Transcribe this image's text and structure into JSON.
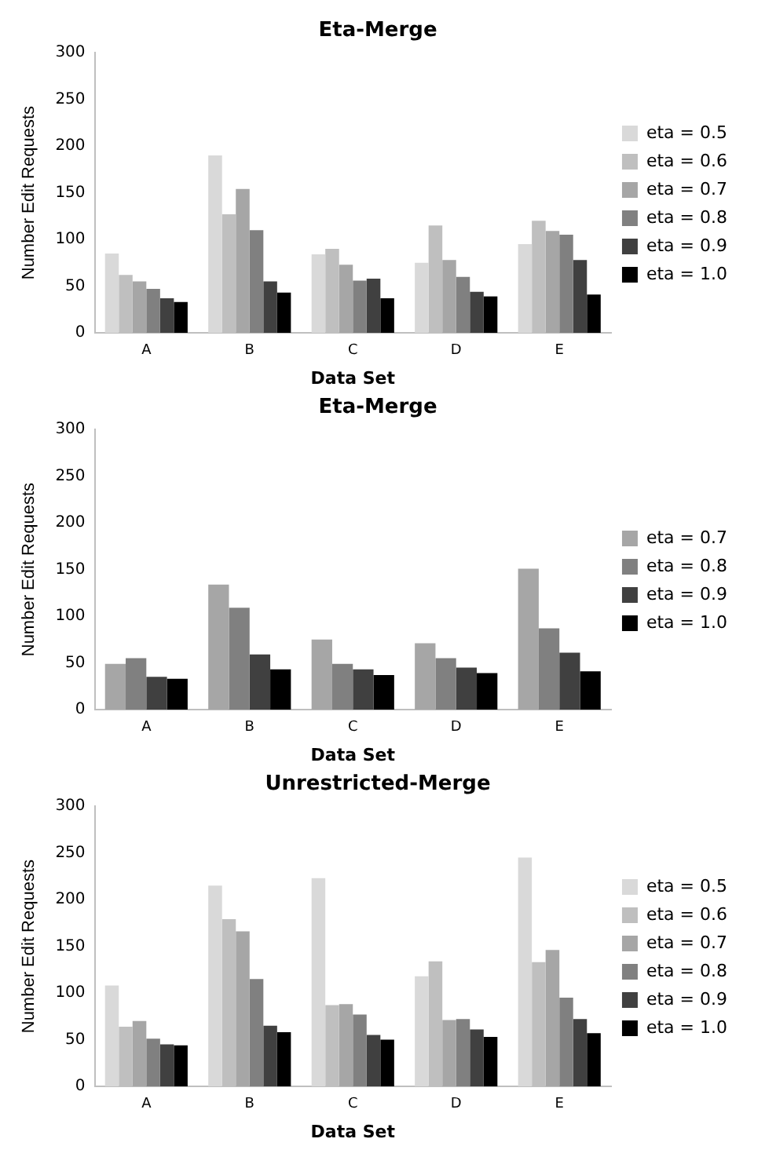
{
  "chart_data": [
    {
      "type": "bar",
      "title": "Eta-Merge",
      "xlabel": "Data Set",
      "ylabel": "Number Edit Requests",
      "categories": [
        "A",
        "B",
        "C",
        "D",
        "E"
      ],
      "ylim": [
        0,
        300
      ],
      "yticks": [
        0,
        50,
        100,
        150,
        200,
        250,
        300
      ],
      "grid": false,
      "legend": "right",
      "series": [
        {
          "name": "eta = 0.5",
          "color": "#d9d9d9",
          "values": [
            85,
            190,
            84,
            75,
            95
          ]
        },
        {
          "name": "eta = 0.6",
          "color": "#bfbfbf",
          "values": [
            62,
            127,
            90,
            115,
            120
          ]
        },
        {
          "name": "eta = 0.7",
          "color": "#a6a6a6",
          "values": [
            55,
            154,
            73,
            78,
            109
          ]
        },
        {
          "name": "eta = 0.8",
          "color": "#808080",
          "values": [
            47,
            110,
            56,
            60,
            105
          ]
        },
        {
          "name": "eta = 0.9",
          "color": "#404040",
          "values": [
            37,
            55,
            58,
            44,
            78
          ]
        },
        {
          "name": "eta = 1.0",
          "color": "#000000",
          "values": [
            33,
            43,
            37,
            39,
            41
          ]
        }
      ]
    },
    {
      "type": "bar",
      "title": "Eta-Merge",
      "xlabel": "Data Set",
      "ylabel": "Number Edit Requests",
      "categories": [
        "A",
        "B",
        "C",
        "D",
        "E"
      ],
      "ylim": [
        0,
        300
      ],
      "yticks": [
        0,
        50,
        100,
        150,
        200,
        250,
        300
      ],
      "grid": false,
      "legend": "right",
      "series": [
        {
          "name": "eta = 0.7",
          "color": "#a6a6a6",
          "values": [
            49,
            134,
            75,
            71,
            151
          ]
        },
        {
          "name": "eta = 0.8",
          "color": "#808080",
          "values": [
            55,
            109,
            49,
            55,
            87
          ]
        },
        {
          "name": "eta = 0.9",
          "color": "#404040",
          "values": [
            35,
            59,
            43,
            45,
            61
          ]
        },
        {
          "name": "eta = 1.0",
          "color": "#000000",
          "values": [
            33,
            43,
            37,
            39,
            41
          ]
        }
      ]
    },
    {
      "type": "bar",
      "title": "Unrestricted-Merge",
      "xlabel": "Data Set",
      "ylabel": "Number Edit Requests",
      "categories": [
        "A",
        "B",
        "C",
        "D",
        "E"
      ],
      "ylim": [
        0,
        300
      ],
      "yticks": [
        0,
        50,
        100,
        150,
        200,
        250,
        300
      ],
      "grid": false,
      "legend": "right",
      "series": [
        {
          "name": "eta = 0.5",
          "color": "#d9d9d9",
          "values": [
            108,
            215,
            223,
            118,
            245
          ]
        },
        {
          "name": "eta = 0.6",
          "color": "#bfbfbf",
          "values": [
            64,
            179,
            87,
            134,
            133
          ]
        },
        {
          "name": "eta = 0.7",
          "color": "#a6a6a6",
          "values": [
            70,
            166,
            88,
            71,
            146
          ]
        },
        {
          "name": "eta = 0.8",
          "color": "#808080",
          "values": [
            51,
            115,
            77,
            72,
            95
          ]
        },
        {
          "name": "eta = 0.9",
          "color": "#404040",
          "values": [
            45,
            65,
            55,
            61,
            72
          ]
        },
        {
          "name": "eta = 1.0",
          "color": "#000000",
          "values": [
            44,
            58,
            50,
            53,
            57
          ]
        }
      ]
    }
  ]
}
